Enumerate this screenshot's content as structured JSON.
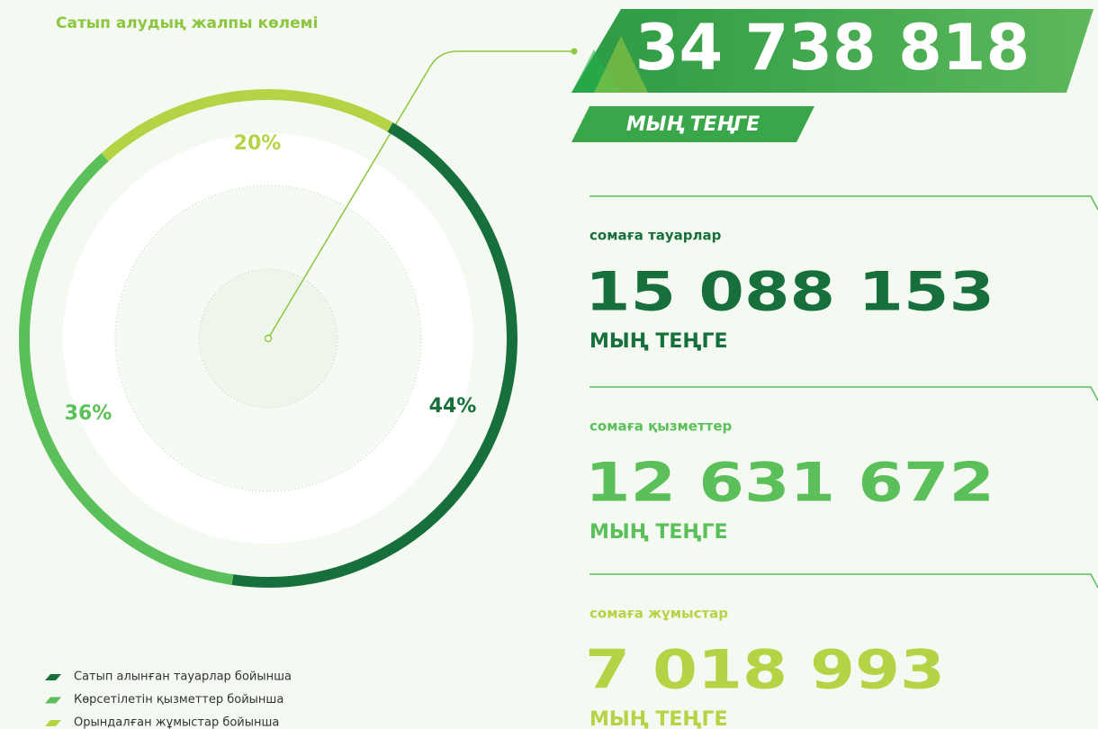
{
  "chart_data": {
    "type": "pie",
    "title": "Сатып алудың жалпы көлемі",
    "categories": [
      "Сатып алынған тауарлар бойынша",
      "Көрсетілетін қызметтер бойынша",
      "Орындалған жұмыстар бойынша"
    ],
    "values": [
      44,
      36,
      20
    ],
    "value_labels": [
      "44%",
      "36%",
      "20%"
    ],
    "colors": [
      "#17703c",
      "#5bbf5a",
      "#b5d445"
    ],
    "total": "34 738 818",
    "total_unit": "МЫҢ ТЕҢГЕ",
    "amounts": [
      {
        "label": "сомаға тауарлар",
        "value": "15 088 153",
        "unit": "МЫҢ ТЕҢГЕ"
      },
      {
        "label": "сомаға қызметтер",
        "value": "12 631 672",
        "unit": "МЫҢ ТЕҢГЕ"
      },
      {
        "label": "сомаға жұмыстар",
        "value": "7 018 993",
        "unit": "МЫҢ ТЕҢГЕ"
      }
    ]
  }
}
